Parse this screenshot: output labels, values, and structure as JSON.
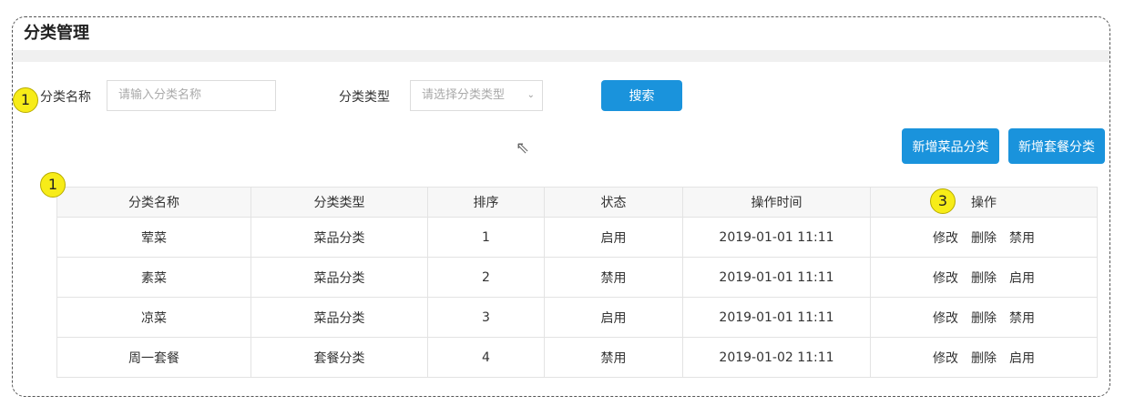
{
  "page": {
    "title": "分类管理"
  },
  "search": {
    "name_label": "分类名称",
    "name_placeholder": "请输入分类名称",
    "type_label": "分类类型",
    "type_placeholder": "请选择分类类型",
    "search_button": "搜索"
  },
  "actions": {
    "add_dish": "新增菜品分类",
    "add_combo": "新增套餐分类"
  },
  "badges": [
    "1",
    "1",
    "3"
  ],
  "table": {
    "headers": [
      "分类名称",
      "分类类型",
      "排序",
      "状态",
      "操作时间",
      "操作"
    ],
    "rows": [
      {
        "name": "荤菜",
        "type": "菜品分类",
        "sort": "1",
        "status": "启用",
        "time": "2019-01-01 11:11",
        "ops": [
          "修改",
          "删除",
          "禁用"
        ]
      },
      {
        "name": "素菜",
        "type": "菜品分类",
        "sort": "2",
        "status": "禁用",
        "time": "2019-01-01 11:11",
        "ops": [
          "修改",
          "删除",
          "启用"
        ]
      },
      {
        "name": "凉菜",
        "type": "菜品分类",
        "sort": "3",
        "status": "启用",
        "time": "2019-01-01 11:11",
        "ops": [
          "修改",
          "删除",
          "禁用"
        ]
      },
      {
        "name": "周一套餐",
        "type": "套餐分类",
        "sort": "4",
        "status": "禁用",
        "time": "2019-01-02 11:11",
        "ops": [
          "修改",
          "删除",
          "启用"
        ]
      }
    ]
  },
  "colors": {
    "primary": "#1a93dc",
    "badge": "#f7ec18"
  }
}
